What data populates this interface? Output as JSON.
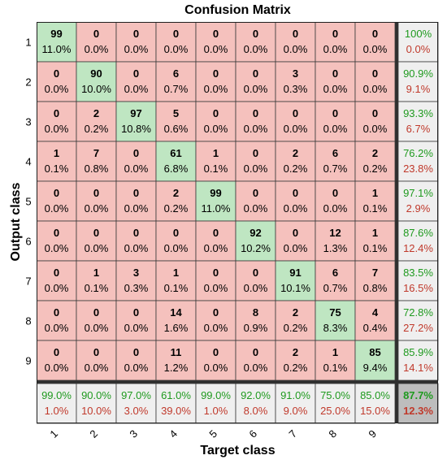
{
  "chart_data": {
    "type": "heatmap",
    "title": "Confusion Matrix",
    "xlabel": "Target class",
    "ylabel": "Output class",
    "x_tick_labels": [
      "1",
      "2",
      "3",
      "4",
      "5",
      "6",
      "7",
      "8",
      "9"
    ],
    "y_tick_labels": [
      "1",
      "2",
      "3",
      "4",
      "5",
      "6",
      "7",
      "8",
      "9"
    ],
    "counts": [
      [
        99,
        0,
        0,
        0,
        0,
        0,
        0,
        0,
        0
      ],
      [
        0,
        90,
        0,
        6,
        0,
        0,
        3,
        0,
        0
      ],
      [
        0,
        2,
        97,
        5,
        0,
        0,
        0,
        0,
        0
      ],
      [
        1,
        7,
        0,
        61,
        1,
        0,
        2,
        6,
        2
      ],
      [
        0,
        0,
        0,
        2,
        99,
        0,
        0,
        0,
        1
      ],
      [
        0,
        0,
        0,
        0,
        0,
        92,
        0,
        12,
        1
      ],
      [
        0,
        1,
        3,
        1,
        0,
        0,
        91,
        6,
        7
      ],
      [
        0,
        0,
        0,
        14,
        0,
        8,
        2,
        75,
        4
      ],
      [
        0,
        0,
        0,
        11,
        0,
        0,
        2,
        1,
        85
      ]
    ],
    "percents": [
      [
        "11.0%",
        "0.0%",
        "0.0%",
        "0.0%",
        "0.0%",
        "0.0%",
        "0.0%",
        "0.0%",
        "0.0%"
      ],
      [
        "0.0%",
        "10.0%",
        "0.0%",
        "0.7%",
        "0.0%",
        "0.0%",
        "0.3%",
        "0.0%",
        "0.0%"
      ],
      [
        "0.0%",
        "0.2%",
        "10.8%",
        "0.6%",
        "0.0%",
        "0.0%",
        "0.0%",
        "0.0%",
        "0.0%"
      ],
      [
        "0.1%",
        "0.8%",
        "0.0%",
        "6.8%",
        "0.1%",
        "0.0%",
        "0.2%",
        "0.7%",
        "0.2%"
      ],
      [
        "0.0%",
        "0.0%",
        "0.0%",
        "0.2%",
        "11.0%",
        "0.0%",
        "0.0%",
        "0.0%",
        "0.1%"
      ],
      [
        "0.0%",
        "0.0%",
        "0.0%",
        "0.0%",
        "0.0%",
        "10.2%",
        "0.0%",
        "1.3%",
        "0.1%"
      ],
      [
        "0.0%",
        "0.1%",
        "0.3%",
        "0.1%",
        "0.0%",
        "0.0%",
        "10.1%",
        "0.7%",
        "0.8%"
      ],
      [
        "0.0%",
        "0.0%",
        "0.0%",
        "1.6%",
        "0.0%",
        "0.9%",
        "0.2%",
        "8.3%",
        "0.4%"
      ],
      [
        "0.0%",
        "0.0%",
        "0.0%",
        "1.2%",
        "0.0%",
        "0.0%",
        "0.2%",
        "0.1%",
        "9.4%"
      ]
    ],
    "row_summary": [
      [
        "100%",
        "0.0%"
      ],
      [
        "90.9%",
        "9.1%"
      ],
      [
        "93.3%",
        "6.7%"
      ],
      [
        "76.2%",
        "23.8%"
      ],
      [
        "97.1%",
        "2.9%"
      ],
      [
        "87.6%",
        "12.4%"
      ],
      [
        "83.5%",
        "16.5%"
      ],
      [
        "72.8%",
        "27.2%"
      ],
      [
        "85.9%",
        "14.1%"
      ]
    ],
    "col_summary": [
      [
        "99.0%",
        "1.0%"
      ],
      [
        "90.0%",
        "10.0%"
      ],
      [
        "97.0%",
        "3.0%"
      ],
      [
        "61.0%",
        "39.0%"
      ],
      [
        "99.0%",
        "1.0%"
      ],
      [
        "92.0%",
        "8.0%"
      ],
      [
        "91.0%",
        "9.0%"
      ],
      [
        "75.0%",
        "25.0%"
      ],
      [
        "85.0%",
        "15.0%"
      ]
    ],
    "overall": [
      "87.7%",
      "12.3%"
    ],
    "colors": {
      "diagonal": "#bfe6c2",
      "off_diagonal": "#f5c1bd",
      "summary": "#efefef",
      "overall": "#bdbdbd",
      "correct_text": "#1f9a1f",
      "error_text": "#c0392b",
      "grid_line": "#3a3a3a"
    }
  }
}
